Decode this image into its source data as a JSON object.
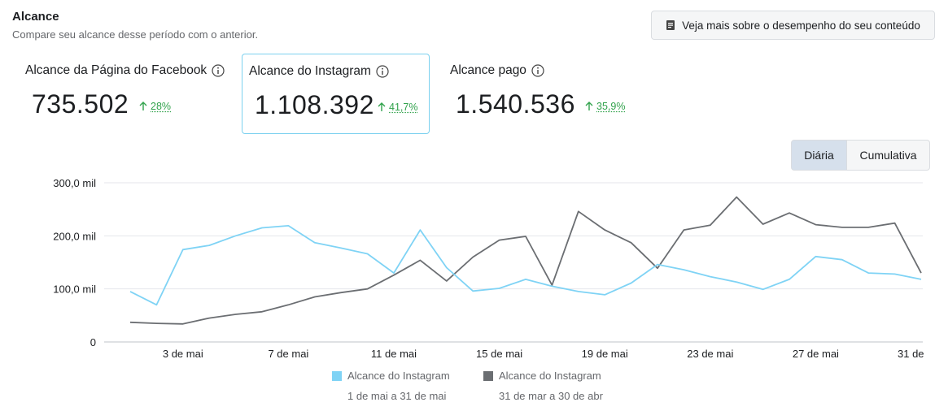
{
  "header": {
    "title": "Alcance",
    "subtitle": "Compare seu alcance desse período com o anterior.",
    "more_button": "Veja mais sobre o desempenho do seu conteúdo"
  },
  "metrics": [
    {
      "label": "Alcance da Página do Facebook",
      "value": "735.502",
      "change": "28%",
      "selected": false
    },
    {
      "label": "Alcance do Instagram",
      "value": "1.108.392",
      "change": "41,7%",
      "selected": true
    },
    {
      "label": "Alcance pago",
      "value": "1.540.536",
      "change": "35,9%",
      "selected": false
    }
  ],
  "toggle": {
    "active": "Diária",
    "inactive": "Cumulativa"
  },
  "colors": {
    "current": "#7fd3f5",
    "previous": "#6b6e72",
    "up": "#31a24c",
    "selected_border": "#7cd1ef"
  },
  "chart_data": {
    "type": "line",
    "ylim": [
      0,
      300000
    ],
    "y_ticks": [
      "0",
      "100,0 mil",
      "200,0 mil",
      "300,0 mil"
    ],
    "x_tick_labels": [
      "3 de mai",
      "7 de mai",
      "11 de mai",
      "15 de mai",
      "19 de mai",
      "23 de mai",
      "27 de mai",
      "31 de"
    ],
    "x_tick_days": [
      3,
      7,
      11,
      15,
      19,
      23,
      27,
      31
    ],
    "grid": true,
    "legend_position": "bottom",
    "series": [
      {
        "name": "Alcance do Instagram",
        "range": "1 de mai a 31 de mai",
        "values": [
          95000,
          70000,
          174000,
          182000,
          200000,
          215000,
          219000,
          187000,
          177000,
          166000,
          130000,
          211000,
          140000,
          96000,
          101000,
          118000,
          105000,
          95000,
          89000,
          111000,
          146000,
          136000,
          123000,
          113000,
          99000,
          118000,
          161000,
          155000,
          130000,
          128000,
          118000
        ]
      },
      {
        "name": "Alcance do Instagram",
        "range": "31 de mar a 30 de abr",
        "values": [
          37000,
          35000,
          34000,
          45000,
          52000,
          57000,
          70000,
          85000,
          93000,
          100000,
          126000,
          154000,
          115000,
          160000,
          192000,
          199000,
          107000,
          246000,
          211000,
          187000,
          139000,
          211000,
          220000,
          273000,
          222000,
          243000,
          221000,
          216000,
          216000,
          224000,
          130000
        ]
      }
    ]
  }
}
